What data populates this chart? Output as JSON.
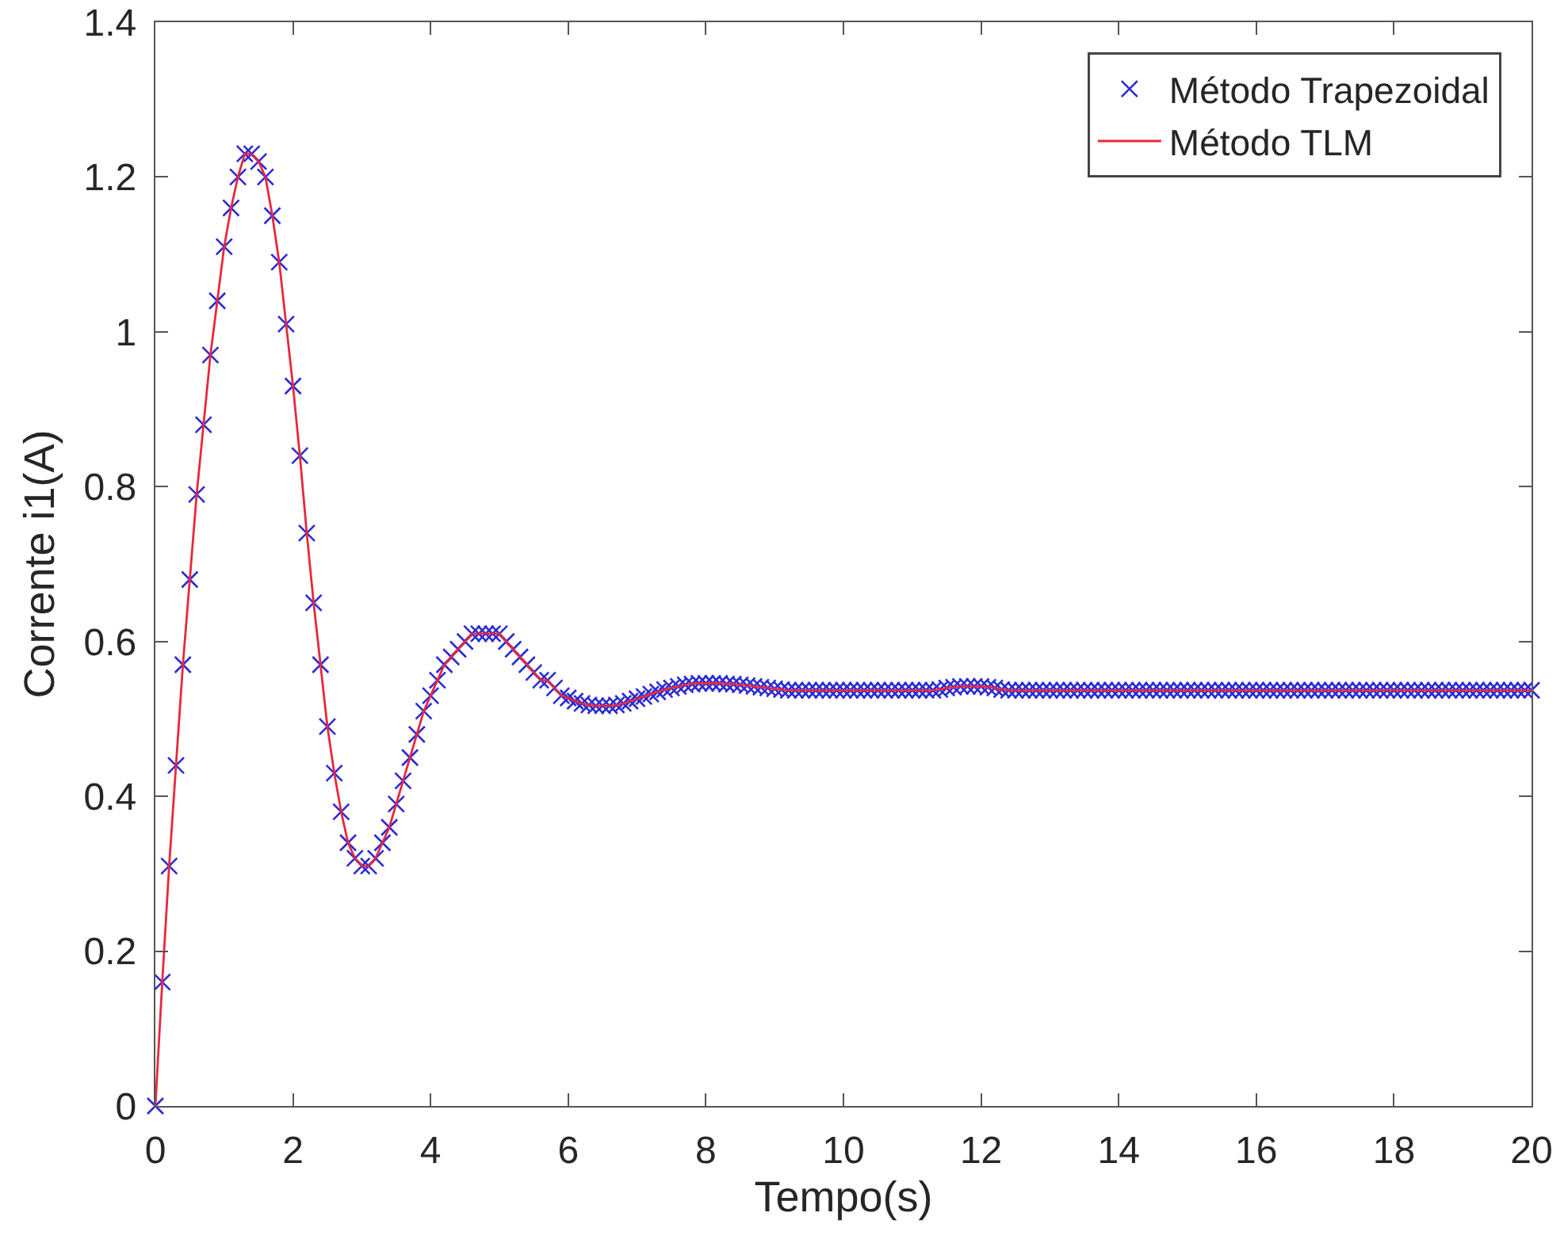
{
  "chart_data": {
    "type": "line",
    "xlabel": "Tempo(s)",
    "ylabel": "Corrente i1(A)",
    "x": [
      0,
      0.1,
      0.2,
      0.3,
      0.4,
      0.5,
      0.6,
      0.7,
      0.8,
      0.9,
      1,
      1.1,
      1.2,
      1.3,
      1.4,
      1.5,
      1.6,
      1.7,
      1.8,
      1.9,
      2,
      2.1,
      2.2,
      2.3,
      2.4,
      2.5,
      2.6,
      2.7,
      2.8,
      2.9,
      3,
      3.1,
      3.2,
      3.3,
      3.4,
      3.5,
      3.6,
      3.7,
      3.8,
      3.9,
      4,
      4.1,
      4.2,
      4.3,
      4.4,
      4.5,
      4.6,
      4.7,
      4.8,
      4.9,
      5,
      5.1,
      5.2,
      5.3,
      5.4,
      5.5,
      5.6,
      5.7,
      5.8,
      5.9,
      6,
      6.1,
      6.2,
      6.3,
      6.4,
      6.5,
      6.6,
      6.7,
      6.8,
      6.9,
      7,
      7.1,
      7.2,
      7.3,
      7.4,
      7.5,
      7.6,
      7.7,
      7.8,
      7.9,
      8,
      8.1,
      8.2,
      8.3,
      8.4,
      8.5,
      8.6,
      8.7,
      8.8,
      8.9,
      9,
      9.1,
      9.2,
      9.3,
      9.4,
      9.5,
      9.6,
      9.7,
      9.8,
      9.9,
      10,
      10.1,
      10.2,
      10.3,
      10.4,
      10.5,
      10.6,
      10.7,
      10.8,
      10.9,
      11,
      11.1,
      11.2,
      11.3,
      11.4,
      11.5,
      11.6,
      11.7,
      11.8,
      11.9,
      12,
      12.1,
      12.2,
      12.3,
      12.4,
      12.5,
      12.6,
      12.7,
      12.8,
      12.9,
      13,
      13.1,
      13.2,
      13.3,
      13.4,
      13.5,
      13.6,
      13.7,
      13.8,
      13.9,
      14,
      14.1,
      14.2,
      14.3,
      14.4,
      14.5,
      14.6,
      14.7,
      14.8,
      14.9,
      15,
      15.1,
      15.2,
      15.3,
      15.4,
      15.5,
      15.6,
      15.7,
      15.8,
      15.9,
      16,
      16.1,
      16.2,
      16.3,
      16.4,
      16.5,
      16.6,
      16.7,
      16.8,
      16.9,
      17,
      17.1,
      17.2,
      17.3,
      17.4,
      17.5,
      17.6,
      17.7,
      17.8,
      17.9,
      18,
      18.1,
      18.2,
      18.3,
      18.4,
      18.5,
      18.6,
      18.7,
      18.8,
      18.9,
      19,
      19.1,
      19.2,
      19.3,
      19.4,
      19.5,
      19.6,
      19.7,
      19.8,
      19.9,
      20
    ],
    "series": [
      {
        "name": "Método Trapezoidal",
        "type": "scatter",
        "marker": "cross",
        "color": "#2b2bd6",
        "values": [
          0,
          0.16,
          0.31,
          0.44,
          0.57,
          0.68,
          0.79,
          0.88,
          0.97,
          1.04,
          1.11,
          1.16,
          1.2,
          1.23,
          1.23,
          1.22,
          1.2,
          1.15,
          1.09,
          1.01,
          0.93,
          0.84,
          0.74,
          0.65,
          0.57,
          0.49,
          0.43,
          0.38,
          0.34,
          0.32,
          0.31,
          0.31,
          0.32,
          0.34,
          0.36,
          0.39,
          0.42,
          0.45,
          0.48,
          0.51,
          0.53,
          0.55,
          0.57,
          0.58,
          0.59,
          0.6,
          0.61,
          0.61,
          0.61,
          0.61,
          0.61,
          0.6,
          0.59,
          0.58,
          0.57,
          0.56,
          0.55,
          0.55,
          0.54,
          0.53,
          0.527,
          0.523,
          0.52,
          0.518,
          0.517,
          0.517,
          0.517,
          0.518,
          0.52,
          0.523,
          0.526,
          0.529,
          0.532,
          0.535,
          0.538,
          0.54,
          0.542,
          0.544,
          0.545,
          0.546,
          0.546,
          0.546,
          0.546,
          0.545,
          0.545,
          0.544,
          0.543,
          0.542,
          0.541,
          0.54,
          0.539,
          0.538,
          0.537,
          0.537,
          0.537,
          0.537,
          0.537,
          0.537,
          0.537,
          0.537,
          0.537,
          0.537,
          0.537,
          0.537,
          0.537,
          0.537,
          0.537,
          0.537,
          0.537,
          0.537,
          0.537,
          0.537,
          0.537,
          0.537,
          0.538,
          0.54,
          0.541,
          0.542,
          0.542,
          0.542,
          0.542,
          0.541,
          0.54,
          0.538,
          0.537,
          0.537,
          0.537,
          0.537,
          0.537,
          0.537,
          0.537,
          0.537,
          0.537,
          0.537,
          0.537,
          0.537,
          0.537,
          0.537,
          0.537,
          0.537,
          0.537,
          0.537,
          0.537,
          0.537,
          0.537,
          0.537,
          0.537,
          0.537,
          0.537,
          0.537,
          0.537,
          0.537,
          0.537,
          0.537,
          0.537,
          0.537,
          0.537,
          0.537,
          0.537,
          0.537,
          0.537,
          0.537,
          0.537,
          0.537,
          0.537,
          0.537,
          0.537,
          0.537,
          0.537,
          0.537,
          0.537,
          0.537,
          0.537,
          0.537,
          0.537,
          0.537,
          0.537,
          0.537,
          0.537,
          0.537,
          0.537,
          0.537,
          0.537,
          0.537,
          0.537,
          0.537,
          0.537,
          0.537,
          0.537,
          0.537,
          0.537,
          0.537,
          0.537,
          0.537,
          0.537,
          0.537,
          0.537,
          0.537,
          0.537,
          0.537,
          0.537
        ]
      },
      {
        "name": "Método TLM",
        "color": "#e8283c",
        "values": [
          0,
          0.16,
          0.31,
          0.44,
          0.57,
          0.68,
          0.79,
          0.88,
          0.97,
          1.04,
          1.11,
          1.16,
          1.2,
          1.23,
          1.23,
          1.22,
          1.2,
          1.15,
          1.09,
          1.01,
          0.93,
          0.84,
          0.74,
          0.65,
          0.57,
          0.49,
          0.43,
          0.38,
          0.34,
          0.32,
          0.31,
          0.31,
          0.32,
          0.34,
          0.36,
          0.39,
          0.42,
          0.45,
          0.48,
          0.51,
          0.53,
          0.55,
          0.57,
          0.58,
          0.59,
          0.6,
          0.61,
          0.61,
          0.61,
          0.61,
          0.61,
          0.6,
          0.59,
          0.58,
          0.57,
          0.56,
          0.55,
          0.55,
          0.54,
          0.53,
          0.527,
          0.523,
          0.52,
          0.518,
          0.517,
          0.517,
          0.517,
          0.518,
          0.52,
          0.523,
          0.526,
          0.529,
          0.532,
          0.535,
          0.538,
          0.54,
          0.542,
          0.544,
          0.545,
          0.546,
          0.546,
          0.546,
          0.546,
          0.545,
          0.545,
          0.544,
          0.543,
          0.542,
          0.541,
          0.54,
          0.539,
          0.538,
          0.537,
          0.537,
          0.537,
          0.537,
          0.537,
          0.537,
          0.537,
          0.537,
          0.537,
          0.537,
          0.537,
          0.537,
          0.537,
          0.537,
          0.537,
          0.537,
          0.537,
          0.537,
          0.537,
          0.537,
          0.537,
          0.537,
          0.538,
          0.54,
          0.541,
          0.542,
          0.542,
          0.542,
          0.542,
          0.541,
          0.54,
          0.538,
          0.537,
          0.537,
          0.537,
          0.537,
          0.537,
          0.537,
          0.537,
          0.537,
          0.537,
          0.537,
          0.537,
          0.537,
          0.537,
          0.537,
          0.537,
          0.537,
          0.537,
          0.537,
          0.537,
          0.537,
          0.537,
          0.537,
          0.537,
          0.537,
          0.537,
          0.537,
          0.537,
          0.537,
          0.537,
          0.537,
          0.537,
          0.537,
          0.537,
          0.537,
          0.537,
          0.537,
          0.537,
          0.537,
          0.537,
          0.537,
          0.537,
          0.537,
          0.537,
          0.537,
          0.537,
          0.537,
          0.537,
          0.537,
          0.537,
          0.537,
          0.537,
          0.537,
          0.537,
          0.537,
          0.537,
          0.537,
          0.537,
          0.537,
          0.537,
          0.537,
          0.537,
          0.537,
          0.537,
          0.537,
          0.537,
          0.537,
          0.537,
          0.537,
          0.537,
          0.537,
          0.537,
          0.537,
          0.537,
          0.537,
          0.537,
          0.537,
          0.537
        ]
      }
    ],
    "xlim": [
      0,
      20
    ],
    "xticks": [
      0,
      2,
      4,
      6,
      8,
      10,
      12,
      14,
      16,
      18,
      20
    ],
    "ylim": [
      0,
      1.4
    ],
    "yticks": [
      0,
      0.2,
      0.4,
      0.6,
      0.8,
      1,
      1.2,
      1.4
    ],
    "grid": false,
    "legend": "top right"
  }
}
